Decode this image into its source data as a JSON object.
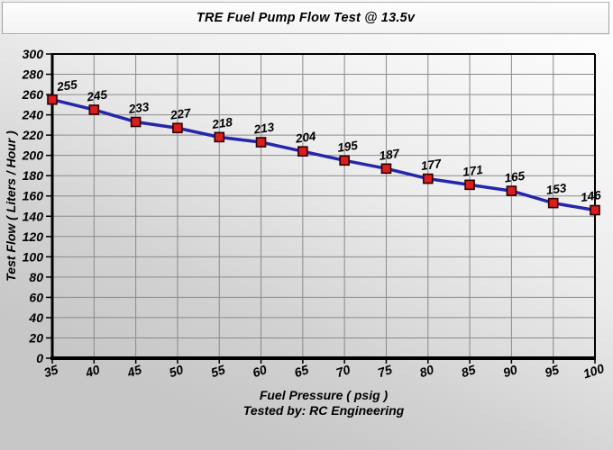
{
  "window": {
    "title": "TRE Fuel Pump Flow Test @ 13.5v"
  },
  "chart_data": {
    "type": "line",
    "title": "TRE Fuel Pump Flow Test @ 13.5v",
    "xlabel": "Fuel Pressure ( psig )",
    "ylabel": "Test Flow ( Liters / Hour )",
    "footer": "Tested by: RC Engineering",
    "series": [
      {
        "name": "Test Flow",
        "x": [
          35,
          40,
          45,
          50,
          55,
          60,
          65,
          70,
          75,
          80,
          85,
          90,
          95,
          100
        ],
        "values": [
          255,
          245,
          233,
          227,
          218,
          213,
          204,
          195,
          187,
          177,
          171,
          165,
          153,
          146
        ]
      }
    ],
    "xlim": [
      35,
      100
    ],
    "ylim": [
      0,
      300
    ],
    "x_tick_step": 5,
    "y_tick_step": 20,
    "x_ticks": [
      35,
      40,
      45,
      50,
      55,
      60,
      65,
      70,
      75,
      80,
      85,
      90,
      95,
      100
    ],
    "y_ticks": [
      0,
      20,
      40,
      60,
      80,
      100,
      120,
      140,
      160,
      180,
      200,
      220,
      240,
      260,
      280,
      300
    ],
    "grid": true,
    "data_labels_shown": true,
    "legend_position": "none",
    "colors": {
      "line": "#2626ab",
      "marker_fill": "#dc1d1d",
      "marker_border": "#2a0000",
      "grid": "#8a8a8a",
      "axis": "#000000",
      "text": "#000000",
      "background_top": "#ffffff",
      "background_bottom": "#c7c7c7"
    }
  }
}
